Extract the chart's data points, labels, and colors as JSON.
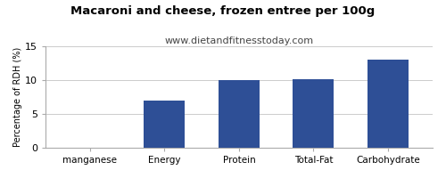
{
  "title": "Macaroni and cheese, frozen entree per 100g",
  "subtitle": "www.dietandfitnesstoday.com",
  "categories": [
    "manganese",
    "Energy",
    "Protein",
    "Total-Fat",
    "Carbohydrate"
  ],
  "values": [
    0,
    7.0,
    10.0,
    10.1,
    13.0
  ],
  "bar_color": "#2e4f96",
  "ylabel": "Percentage of RDH (%)",
  "ylim": [
    0,
    15
  ],
  "yticks": [
    0,
    5,
    10,
    15
  ],
  "background_color": "#ffffff",
  "plot_bg_color": "#ffffff",
  "title_fontsize": 9.5,
  "subtitle_fontsize": 8,
  "ylabel_fontsize": 7,
  "xtick_fontsize": 7.5,
  "ytick_fontsize": 8
}
